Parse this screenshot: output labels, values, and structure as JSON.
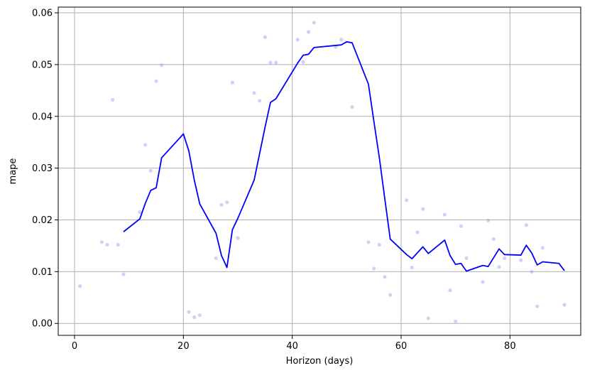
{
  "chart_data": {
    "type": "line",
    "title": "",
    "xlabel": "Horizon (days)",
    "ylabel": "mape",
    "xlim": [
      -3,
      93
    ],
    "ylim": [
      -0.0023,
      0.0611
    ],
    "xticks": [
      0,
      20,
      40,
      60,
      80
    ],
    "xtick_labels": [
      "0",
      "20",
      "40",
      "60",
      "80"
    ],
    "yticks": [
      0.0,
      0.01,
      0.02,
      0.03,
      0.04,
      0.05,
      0.06
    ],
    "ytick_labels": [
      "0.00",
      "0.01",
      "0.02",
      "0.03",
      "0.04",
      "0.05",
      "0.06"
    ],
    "grid": true,
    "colors": {
      "line": "#0000ff",
      "points": "#9999ee",
      "grid": "#b0b0b0",
      "axis": "#000000"
    },
    "series": [
      {
        "kind": "scatter",
        "x": [
          1,
          5,
          6,
          7,
          8,
          9,
          12,
          13,
          14,
          15,
          16,
          21,
          22,
          23,
          26,
          27,
          28,
          29,
          30,
          33,
          34,
          35,
          36,
          37,
          41,
          42,
          43,
          44,
          48,
          49,
          51,
          54,
          55,
          56,
          57,
          58,
          61,
          62,
          63,
          64,
          65,
          68,
          69,
          70,
          71,
          72,
          75,
          76,
          77,
          78,
          79,
          82,
          83,
          84,
          85,
          86,
          90
        ],
        "y": [
          0.0072,
          0.0157,
          0.0152,
          0.0432,
          0.0152,
          0.0095,
          0.0215,
          0.0345,
          0.0295,
          0.0468,
          0.0499,
          0.0022,
          0.0012,
          0.0016,
          0.0126,
          0.0229,
          0.0234,
          0.0465,
          0.0165,
          0.0445,
          0.043,
          0.0553,
          0.0504,
          0.0504,
          0.0548,
          0.0505,
          0.0563,
          0.0581,
          0.0534,
          0.0548,
          0.0418,
          0.0157,
          0.0106,
          0.0152,
          0.009,
          0.0055,
          0.0238,
          0.0108,
          0.0176,
          0.0221,
          0.001,
          0.021,
          0.0064,
          0.0004,
          0.0188,
          0.0126,
          0.008,
          0.0199,
          0.0163,
          0.0109,
          0.0126,
          0.0122,
          0.019,
          0.01,
          0.0033,
          0.0146,
          0.0036
        ]
      },
      {
        "kind": "line",
        "x": [
          9,
          12,
          13,
          14,
          15,
          16,
          20,
          21,
          22,
          23,
          26,
          27,
          28,
          29,
          30,
          33,
          35,
          36,
          37,
          41,
          42,
          43,
          44,
          49,
          50,
          51,
          54,
          55,
          56,
          57,
          58,
          61,
          62,
          64,
          65,
          68,
          69,
          70,
          71,
          72,
          75,
          76,
          78,
          79,
          82,
          83,
          84,
          85,
          86,
          89,
          90
        ],
        "y": [
          0.0177,
          0.0202,
          0.0232,
          0.0257,
          0.0262,
          0.032,
          0.0366,
          0.0333,
          0.0277,
          0.0231,
          0.0174,
          0.0131,
          0.0108,
          0.0181,
          0.0203,
          0.0277,
          0.0379,
          0.0427,
          0.0434,
          0.0503,
          0.0518,
          0.052,
          0.0533,
          0.0538,
          0.0544,
          0.0542,
          0.0462,
          0.039,
          0.032,
          0.0241,
          0.0163,
          0.0133,
          0.0125,
          0.0148,
          0.0135,
          0.0161,
          0.0131,
          0.0114,
          0.0116,
          0.0101,
          0.0112,
          0.011,
          0.0144,
          0.0133,
          0.0132,
          0.0151,
          0.0136,
          0.0113,
          0.0119,
          0.0116,
          0.0102
        ]
      }
    ]
  }
}
